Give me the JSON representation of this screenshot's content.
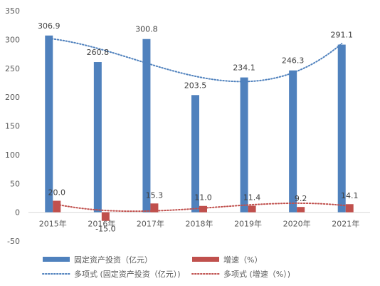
{
  "chart_data": {
    "type": "bar",
    "categories": [
      "2015年",
      "2016年",
      "2017年",
      "2018年",
      "2019年",
      "2020年",
      "2021年"
    ],
    "series": [
      {
        "name": "固定资产投资（亿元）",
        "color": "#4F81BD",
        "values": [
          306.9,
          260.8,
          300.8,
          203.5,
          234.1,
          246.3,
          291.1
        ],
        "labels": [
          "306.9",
          "260.8",
          "300.8",
          "203.5",
          "234.1",
          "246.3",
          "291.1"
        ]
      },
      {
        "name": "增速（%）",
        "color": "#C0504D",
        "values": [
          20.0,
          -15.0,
          15.3,
          11.0,
          11.4,
          9.2,
          14.1
        ],
        "labels": [
          "20.0",
          "-15.0",
          "15.3",
          "11.0",
          "11.4",
          "9.2",
          "14.1"
        ]
      }
    ],
    "trendlines": [
      {
        "name": "多项式 (固定资产投资（亿元）)",
        "series_index": 0,
        "type": "polynomial",
        "color": "#4F81BD",
        "style": "dotted"
      },
      {
        "name": "多项式 (增速（%）)",
        "series_index": 1,
        "type": "polynomial",
        "color": "#C0504D",
        "style": "dotted"
      }
    ],
    "yaxis": {
      "ylim": [
        -50,
        350
      ],
      "ticks": [
        -50,
        0,
        50,
        100,
        150,
        200,
        250,
        300,
        350
      ],
      "tick_labels": [
        "-50",
        "0",
        "50",
        "100",
        "150",
        "200",
        "250",
        "300",
        "350"
      ]
    },
    "grid": false,
    "legend": "bottom"
  }
}
